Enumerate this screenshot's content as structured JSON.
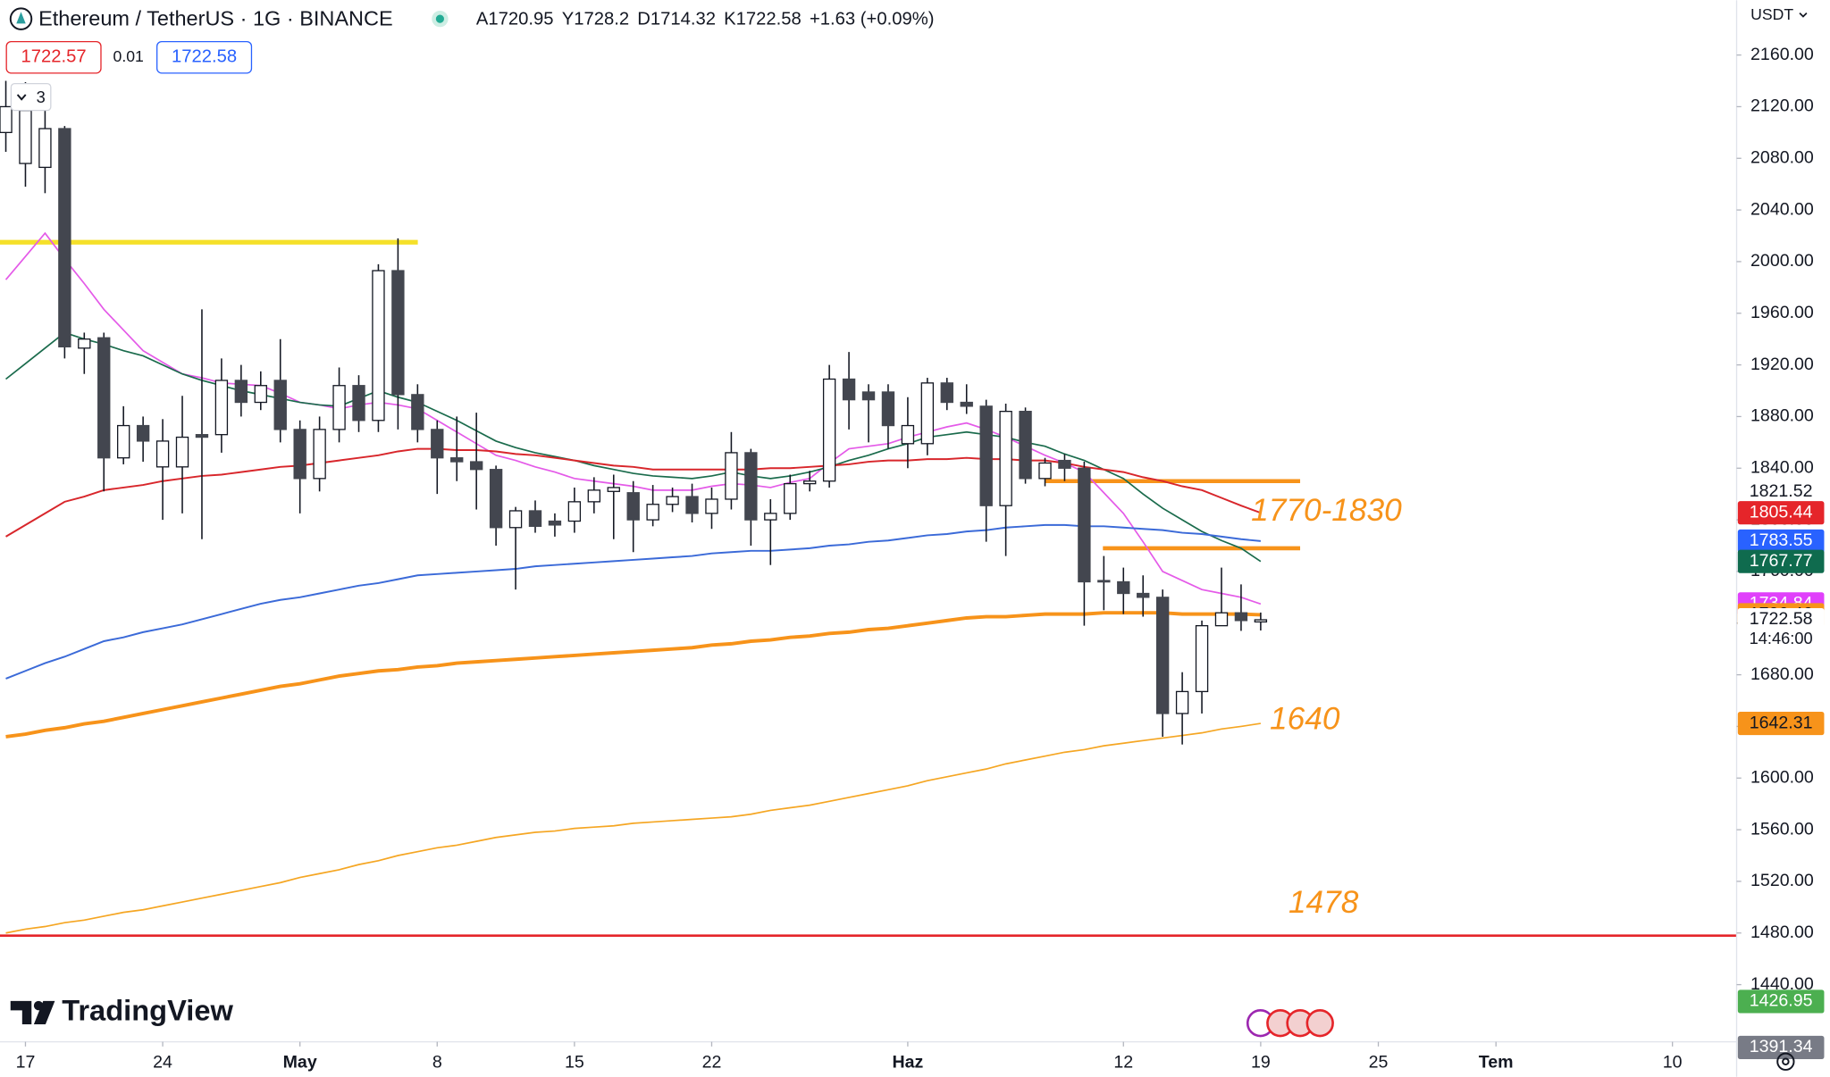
{
  "chart_data": {
    "type": "candlestick",
    "symbol": "Ethereum / TetherUS · 1G · BINANCE",
    "ohlc_labels": [
      "A",
      "Y",
      "D",
      "K"
    ],
    "change": "+1.63 (+0.09%)",
    "bid": 1722.57,
    "spread": 0.01,
    "ask": 1722.58,
    "indicator_count": 3,
    "currency": "USDT",
    "watermark": "TradingView",
    "categories": [
      null,
      "17",
      null,
      null,
      null,
      null,
      null,
      null,
      "24",
      null,
      null,
      null,
      null,
      null,
      null,
      "May",
      null,
      null,
      null,
      null,
      null,
      null,
      "8",
      null,
      null,
      null,
      null,
      null,
      null,
      "15",
      null,
      null,
      null,
      null,
      null,
      null,
      "22",
      null,
      null,
      null,
      null,
      null,
      null,
      null,
      null,
      null,
      "Haz",
      null,
      null,
      null,
      null,
      null,
      null,
      null,
      null,
      null,
      null,
      "12",
      null,
      null,
      null,
      null,
      null,
      null,
      "19",
      null,
      null,
      null,
      null,
      null,
      "25",
      null,
      null,
      null,
      null,
      null,
      "Tem",
      null,
      null,
      null,
      null,
      null,
      null,
      null,
      null,
      "10",
      null,
      null,
      null
    ],
    "open": [
      2100,
      2076,
      2073,
      2103,
      1933,
      1941,
      1848,
      1873,
      1841,
      1841,
      1866,
      1866,
      1908,
      1891,
      1908,
      1870,
      1832,
      1870,
      1904,
      1877,
      1993,
      1897,
      1870,
      1848,
      1845,
      1839,
      1794,
      1807,
      1799,
      1799,
      1814,
      1822,
      1821,
      1800,
      1812,
      1818,
      1805,
      1816,
      1852,
      1800,
      1805,
      1828,
      1830,
      1909,
      1899,
      1899,
      1859,
      1859,
      1906,
      1891,
      1888,
      1811,
      1884,
      1832,
      1846,
      1840,
      1753,
      1752,
      1743,
      1740,
      1650,
      1667,
      1718,
      1728,
      1720.95,
      null,
      null,
      null,
      null,
      null,
      null,
      null,
      null,
      null,
      null,
      null,
      null,
      null,
      null,
      null,
      null,
      null,
      null,
      null,
      null,
      null,
      null,
      null,
      null
    ],
    "high": [
      2140,
      2139,
      2117,
      2105,
      1945,
      1945,
      1888,
      1880,
      1878,
      1896,
      1963,
      1925,
      1920,
      1915,
      1940,
      1877,
      1880,
      1918,
      1912,
      1998,
      2018,
      1905,
      1877,
      1880,
      1883,
      1842,
      1810,
      1815,
      1805,
      1825,
      1833,
      1835,
      1830,
      1827,
      1825,
      1828,
      1825,
      1868,
      1855,
      1816,
      1835,
      1838,
      1920,
      1930,
      1905,
      1905,
      1895,
      1910,
      1910,
      1905,
      1893,
      1890,
      1887,
      1848,
      1851,
      1845,
      1772,
      1763,
      1757,
      1746,
      1682,
      1722,
      1763,
      1750,
      1728.2,
      null,
      null,
      null,
      null,
      null,
      null,
      null,
      null,
      null,
      null,
      null,
      null,
      null,
      null,
      null,
      null,
      null,
      null,
      null,
      null,
      null,
      null,
      null,
      null
    ],
    "low": [
      2085,
      2058,
      2053,
      1925,
      1913,
      1822,
      1843,
      1845,
      1800,
      1805,
      1785,
      1852,
      1880,
      1885,
      1860,
      1805,
      1822,
      1860,
      1868,
      1868,
      1870,
      1860,
      1820,
      1830,
      1808,
      1780,
      1746,
      1790,
      1787,
      1790,
      1805,
      1785,
      1775,
      1795,
      1806,
      1798,
      1793,
      1808,
      1780,
      1765,
      1800,
      1822,
      1825,
      1870,
      1860,
      1855,
      1840,
      1850,
      1885,
      1882,
      1783,
      1772,
      1828,
      1826,
      1830,
      1718,
      1730,
      1727,
      1725,
      1632,
      1626,
      1650,
      1718,
      1714,
      1714.32,
      null,
      null,
      null,
      null,
      null,
      null,
      null,
      null,
      null,
      null,
      null,
      null,
      null,
      null,
      null,
      null,
      null,
      null,
      null,
      null,
      null,
      null,
      null,
      null
    ],
    "close": [
      2120,
      2117,
      2103,
      1934,
      1940,
      1848,
      1873,
      1861,
      1861,
      1864,
      1864,
      1908,
      1891,
      1904,
      1870,
      1832,
      1870,
      1904,
      1877,
      1993,
      1897,
      1870,
      1848,
      1845,
      1839,
      1794,
      1807,
      1795,
      1796,
      1814,
      1823,
      1825,
      1800,
      1812,
      1818,
      1805,
      1816,
      1852,
      1800,
      1805,
      1828,
      1830,
      1909,
      1893,
      1893,
      1873,
      1873,
      1906,
      1891,
      1888,
      1811,
      1884,
      1832,
      1844,
      1840,
      1752,
      1752,
      1743,
      1740,
      1650,
      1667,
      1718,
      1728,
      1722,
      1722.58,
      null,
      null,
      null,
      null,
      null,
      null,
      null,
      null,
      null,
      null,
      null,
      null,
      null,
      null,
      null,
      null,
      null,
      null,
      null,
      null,
      null,
      null,
      null,
      null
    ],
    "up_color": "#ffffff",
    "down_color": "#43464f",
    "wick_color": "#131722",
    "overlays": [
      {
        "color": "#e45ae8",
        "width": 1.3,
        "values": [
          1986,
          2004,
          2022,
          2002,
          1983,
          1963,
          1947,
          1931,
          1922,
          1913,
          1910,
          1906,
          1905,
          1904,
          1898,
          1891,
          1889,
          1886,
          1889,
          1891,
          1889,
          1886,
          1877,
          1868,
          1859,
          1850,
          1846,
          1841,
          1837,
          1832,
          1830,
          1828,
          1826,
          1823,
          1823,
          1823,
          1826,
          1828,
          1827,
          1825,
          1829,
          1832,
          1844,
          1855,
          1857,
          1859,
          1864,
          1868,
          1872,
          1875,
          1870,
          1864,
          1857,
          1850,
          1844,
          1837,
          1821,
          1805,
          1783,
          1760,
          1753,
          1746,
          1743,
          1740,
          1734.84,
          null,
          null,
          null,
          null,
          null,
          null,
          null,
          null,
          null,
          null,
          null,
          null,
          null,
          null,
          null,
          null,
          null,
          null,
          null,
          null,
          null,
          null,
          null,
          null
        ]
      },
      {
        "color": "#1a6b4c",
        "width": 1.3,
        "values": [
          1909,
          1921,
          1933,
          1945,
          1940,
          1936,
          1931,
          1927,
          1920,
          1913,
          1908,
          1904,
          1900,
          1897,
          1894,
          1891,
          1889,
          1888,
          1894,
          1900,
          1895,
          1891,
          1884,
          1877,
          1869,
          1861,
          1856,
          1852,
          1849,
          1846,
          1842,
          1839,
          1836,
          1834,
          1833,
          1832,
          1834,
          1837,
          1834,
          1832,
          1834,
          1837,
          1841,
          1846,
          1850,
          1855,
          1859,
          1864,
          1866,
          1868,
          1866,
          1864,
          1860,
          1857,
          1851,
          1846,
          1839,
          1832,
          1820,
          1809,
          1800,
          1791,
          1784,
          1778,
          1767.77,
          null,
          null,
          null,
          null,
          null,
          null,
          null,
          null,
          null,
          null,
          null,
          null,
          null,
          null,
          null,
          null,
          null,
          null,
          null,
          null,
          null,
          null,
          null,
          null
        ]
      },
      {
        "color": "#d8262b",
        "width": 1.5,
        "values": [
          1787,
          1796,
          1805,
          1814,
          1818,
          1823,
          1825,
          1827,
          1830,
          1832,
          1834,
          1835,
          1837,
          1839,
          1841,
          1842,
          1844,
          1846,
          1848,
          1850,
          1853,
          1855,
          1855,
          1854,
          1854,
          1853,
          1851,
          1850,
          1848,
          1846,
          1844,
          1842,
          1841,
          1839,
          1839,
          1839,
          1839,
          1839,
          1839,
          1840,
          1840,
          1841,
          1842,
          1843,
          1845,
          1846,
          1846,
          1847,
          1847,
          1848,
          1847,
          1847,
          1846,
          1846,
          1844,
          1841,
          1839,
          1837,
          1833,
          1830,
          1826,
          1823,
          1817,
          1811,
          1805.44,
          null,
          null,
          null,
          null,
          null,
          null,
          null,
          null,
          null,
          null,
          null,
          null,
          null,
          null,
          null,
          null,
          null,
          null,
          null,
          null,
          null,
          null,
          null,
          null
        ]
      },
      {
        "color": "#3b6ad8",
        "width": 1.5,
        "values": [
          1677,
          1683,
          1689,
          1694,
          1700,
          1706,
          1709,
          1713,
          1716,
          1719,
          1723,
          1727,
          1731,
          1735,
          1738,
          1740,
          1743,
          1746,
          1749,
          1751,
          1754,
          1757,
          1758,
          1759,
          1760,
          1761,
          1762,
          1764,
          1765,
          1766,
          1767,
          1768,
          1769,
          1770,
          1771,
          1772,
          1774,
          1775,
          1776,
          1776,
          1777,
          1778,
          1780,
          1781,
          1783,
          1784,
          1786,
          1788,
          1789,
          1791,
          1792,
          1794,
          1795,
          1796,
          1796,
          1795,
          1795,
          1794,
          1793,
          1792,
          1790,
          1789,
          1787,
          1785,
          1783.55,
          null,
          null,
          null,
          null,
          null,
          null,
          null,
          null,
          null,
          null,
          null,
          null,
          null,
          null,
          null,
          null,
          null,
          null,
          null,
          null,
          null,
          null,
          null,
          null
        ]
      },
      {
        "color": "#f7931a",
        "width": 3,
        "values": [
          1632,
          1634,
          1637,
          1639,
          1642,
          1644,
          1647,
          1650,
          1653,
          1656,
          1659,
          1662,
          1665,
          1668,
          1671,
          1673,
          1676,
          1679,
          1681,
          1683,
          1684,
          1686,
          1687,
          1689,
          1690,
          1691,
          1692,
          1693,
          1694,
          1695,
          1696,
          1697,
          1698,
          1699,
          1700,
          1701,
          1703,
          1704,
          1706,
          1707,
          1709,
          1710,
          1712,
          1713,
          1715,
          1716,
          1718,
          1720,
          1722,
          1724,
          1725,
          1725,
          1726,
          1727,
          1727,
          1727,
          1728,
          1728,
          1728,
          1728,
          1727,
          1727,
          1727,
          1727,
          1726.46,
          null,
          null,
          null,
          null,
          null,
          null,
          null,
          null,
          null,
          null,
          null,
          null,
          null,
          null,
          null,
          null,
          null,
          null,
          null,
          null,
          null,
          null,
          null,
          null
        ]
      },
      {
        "color": "#f5a623",
        "width": 1.3,
        "values": [
          1480,
          1483,
          1485,
          1488,
          1490,
          1493,
          1496,
          1498,
          1501,
          1504,
          1507,
          1510,
          1513,
          1516,
          1519,
          1523,
          1526,
          1529,
          1533,
          1536,
          1540,
          1543,
          1546,
          1548,
          1551,
          1554,
          1556,
          1558,
          1559,
          1561,
          1562,
          1563,
          1565,
          1566,
          1567,
          1568,
          1569,
          1570,
          1572,
          1575,
          1577,
          1579,
          1582,
          1585,
          1588,
          1591,
          1594,
          1598,
          1601,
          1604,
          1607,
          1611,
          1614,
          1617,
          1620,
          1622,
          1625,
          1627,
          1629,
          1631,
          1633,
          1635,
          1638,
          1640,
          1642.31,
          null,
          null,
          null,
          null,
          null,
          null,
          null,
          null,
          null,
          null,
          null,
          null,
          null,
          null,
          null,
          null,
          null,
          null,
          null,
          null,
          null,
          null,
          null,
          null
        ]
      }
    ],
    "levels": [
      {
        "value": 2015,
        "color": "#f5e02a"
      },
      {
        "value": 1830,
        "color": "#f7931a"
      },
      {
        "value": 1778,
        "color": "#f7931a"
      },
      {
        "value": 1478,
        "color": "#e5252a"
      }
    ],
    "annotations": [
      {
        "text": "1770-1830",
        "color": "#f7931a"
      },
      {
        "text": "1640",
        "color": "#f7931a"
      },
      {
        "text": "1478",
        "color": "#f7931a"
      }
    ],
    "ylim": [
      1395.73,
      2202.46
    ],
    "yticks": [
      {
        "value": 2160,
        "label": "2160.00"
      },
      {
        "value": 2120,
        "label": "2120.00"
      },
      {
        "value": 2080,
        "label": "2080.00"
      },
      {
        "value": 2040,
        "label": "2040.00"
      },
      {
        "value": 2000,
        "label": "2000.00"
      },
      {
        "value": 1960,
        "label": "1960.00"
      },
      {
        "value": 1920,
        "label": "1920.00"
      },
      {
        "value": 1880,
        "label": "1880.00"
      },
      {
        "value": 1840,
        "label": "1840.00"
      },
      {
        "value": 1800,
        "label": "1800.00"
      },
      {
        "value": 1760,
        "label": "1760.00"
      },
      {
        "value": 1720,
        "label": "1720.00"
      },
      {
        "value": 1680,
        "label": "1680.00"
      },
      {
        "value": 1640,
        "label": "1640.00"
      },
      {
        "value": 1600,
        "label": "1600.00"
      },
      {
        "value": 1560,
        "label": "1560.00"
      },
      {
        "value": 1520,
        "label": "1520.00"
      },
      {
        "value": 1480,
        "label": "1480.00"
      },
      {
        "value": 1440,
        "label": "1440.00"
      }
    ],
    "badges": [
      {
        "value": 1821.52,
        "color": "#ffffff",
        "text_color": "#131722"
      },
      {
        "value": 1805.44,
        "color": "#e5252a",
        "text_color": "#ffffff"
      },
      {
        "value": 1783.55,
        "color": "#2962ff",
        "text_color": "#ffffff"
      },
      {
        "value": 1767.77,
        "color": "#0f6b4e",
        "text_color": "#ffffff"
      },
      {
        "value": 1734.84,
        "color": "#e040fb",
        "text_color": "#ffffff"
      },
      {
        "value": 1726.46,
        "color": "#f7931a",
        "text_color": "#131722"
      },
      {
        "value": 1722.58,
        "color": "#ffffff",
        "text_color": "#131722",
        "sub": "14:46:00"
      },
      {
        "value": 1642.31,
        "color": "#f7931a",
        "text_color": "#131722"
      },
      {
        "value": 1426.95,
        "color": "#4caf50",
        "text_color": "#ffffff"
      },
      {
        "value": 1391.34,
        "color": "#787b86",
        "text_color": "#ffffff"
      }
    ]
  }
}
